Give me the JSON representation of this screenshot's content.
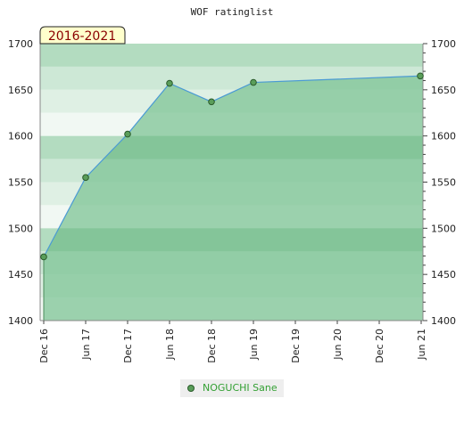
{
  "chart_data": {
    "type": "area",
    "title": "WOF ratinglist",
    "period_badge": "2016-2021",
    "x_labels": [
      "Dec 16",
      "Jun 17",
      "Dec 17",
      "Jun 18",
      "Dec 18",
      "Jun 19",
      "Dec 19",
      "Jun 20",
      "Dec 20",
      "Jun 21"
    ],
    "y_ticks": [
      1400,
      1450,
      1500,
      1550,
      1600,
      1650,
      1700
    ],
    "ylim": [
      1400,
      1700
    ],
    "grid": true,
    "legend_position": "bottom",
    "series": [
      {
        "name": "NOGUCHI Sane",
        "x_index": [
          0,
          1,
          2,
          3,
          4,
          5,
          9
        ],
        "values": [
          1469,
          1555,
          1602,
          1657,
          1637,
          1658,
          1665
        ]
      }
    ]
  },
  "colors": {
    "line": "#4a9ad4",
    "marker_fill": "#5a9e5a",
    "marker_stroke": "#2a5a2a",
    "area_fill": "#7ec495",
    "badge_fill": "#ffffcc",
    "badge_text": "#8b0000",
    "legend_text": "#33a033"
  }
}
